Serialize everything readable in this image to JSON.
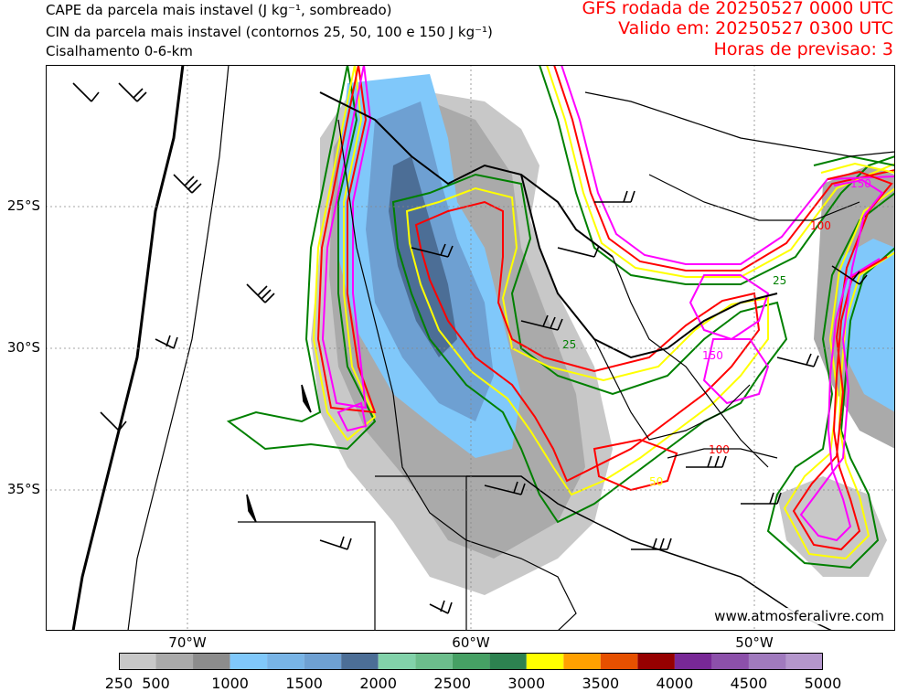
{
  "header": {
    "line1": "CAPE da parcela mais instavel (J kg⁻¹, sombreado)",
    "line2": "CIN da parcela mais instavel (contornos 25, 50, 100 e 150 J kg⁻¹)",
    "line3": "Cisalhamento 0-6-km",
    "run": "GFS rodada de 20250527 0000 UTC",
    "valid": "Valido em: 20250527 0300 UTC",
    "forecast_hours": "Horas de previsao: 3"
  },
  "axes": {
    "lat_labels": [
      "25°S",
      "30°S",
      "35°S"
    ],
    "lon_labels": [
      "70°W",
      "60°W",
      "50°W"
    ]
  },
  "colorbar": {
    "ticks": [
      "250",
      "500",
      "1000",
      "1500",
      "2000",
      "2500",
      "3000",
      "3500",
      "4000",
      "4500",
      "5000"
    ],
    "levels": [
      250,
      500,
      750,
      1000,
      1250,
      1500,
      1750,
      2000,
      2250,
      2500,
      2750,
      3000,
      3250,
      3500,
      3750,
      4000,
      4250,
      4500,
      4750,
      5000
    ],
    "colors": [
      "#c8c8c8",
      "#aaaaaa",
      "#8c8c8c",
      "#80c8fa",
      "#78b4e6",
      "#6ea0d2",
      "#4c6e96",
      "#82d2aa",
      "#6cbe8c",
      "#46a064",
      "#2d8250",
      "#ffff00",
      "#ffa000",
      "#e65000",
      "#960000",
      "#782896",
      "#8c50aa",
      "#a07abe",
      "#b496cc"
    ]
  },
  "cin_contour_colors": {
    "25": "#008000",
    "50": "#ffff00",
    "100": "#ff0000",
    "150": "#ff00ff"
  },
  "cin_contour_labels": [
    "25",
    "50",
    "100",
    "150"
  ],
  "credit": "www.atmosferalivre.com"
}
